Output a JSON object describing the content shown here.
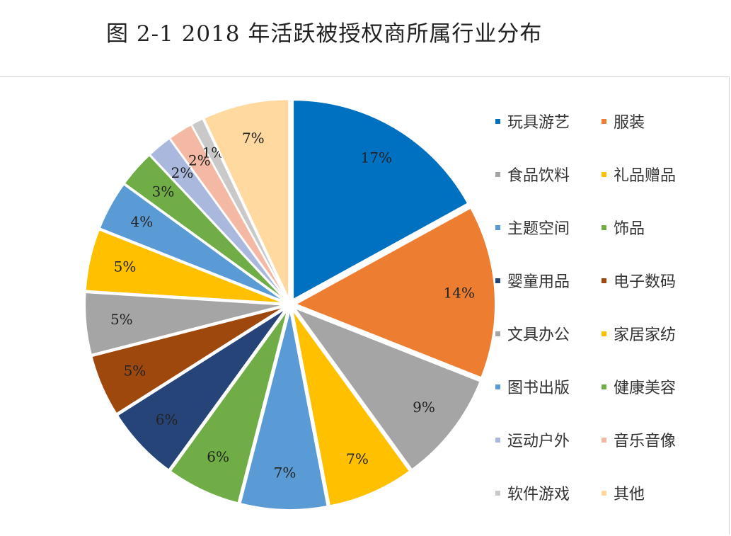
{
  "title": "图 2-1   2018 年活跃被授权商所属行业分布",
  "chart_data": {
    "type": "pie",
    "title": "图 2-1   2018 年活跃被授权商所属行业分布",
    "legend_position": "right",
    "slices": [
      {
        "name": "玩具游艺",
        "value": 17,
        "label": "17%",
        "color": "#0070C0"
      },
      {
        "name": "服装",
        "value": 14,
        "label": "14%",
        "color": "#ED7D31"
      },
      {
        "name": "食品饮料",
        "value": 9,
        "label": "9%",
        "color": "#A5A5A5"
      },
      {
        "name": "礼品赠品",
        "value": 7,
        "label": "7%",
        "color": "#FFC000"
      },
      {
        "name": "主题空间",
        "value": 7,
        "label": "7%",
        "color": "#5B9BD5"
      },
      {
        "name": "饰品",
        "value": 6,
        "label": "6%",
        "color": "#70AD47"
      },
      {
        "name": "婴童用品",
        "value": 6,
        "label": "6%",
        "color": "#264478"
      },
      {
        "name": "电子数码",
        "value": 5,
        "label": "5%",
        "color": "#9E480E"
      },
      {
        "name": "文具办公",
        "value": 5,
        "label": "5%",
        "color": "#A5A5A5"
      },
      {
        "name": "家居家纺",
        "value": 5,
        "label": "5%",
        "color": "#FFC000"
      },
      {
        "name": "图书出版",
        "value": 4,
        "label": "4%",
        "color": "#5B9BD5"
      },
      {
        "name": "健康美容",
        "value": 3,
        "label": "3%",
        "color": "#70AD47"
      },
      {
        "name": "运动户外",
        "value": 2,
        "label": "2%",
        "color": "#A9B8DC"
      },
      {
        "name": "音乐音像",
        "value": 2,
        "label": "2%",
        "color": "#F4B9A4"
      },
      {
        "name": "软件游戏",
        "value": 1,
        "label": "1%",
        "color": "#C9C9C9"
      },
      {
        "name": "其他",
        "value": 7,
        "label": "7%",
        "color": "#FFD9A0"
      }
    ]
  }
}
